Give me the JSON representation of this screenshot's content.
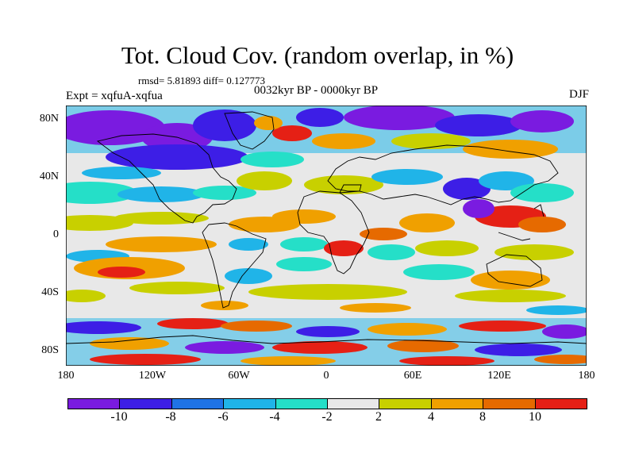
{
  "title": "Tot. Cloud Cov. (random overlap, in %)",
  "stats": "rmsd= 5.81893 diff= 0.127773",
  "experiment": "Expt = xqfuA-xqfua",
  "period": "0032kyr BP - 0000kyr BP",
  "season": "DJF",
  "lat_ticks": [
    "80N",
    "40N",
    "0",
    "40S",
    "80S"
  ],
  "lon_ticks": [
    "180",
    "120W",
    "60W",
    "0",
    "60E",
    "120E",
    "180"
  ],
  "colorbar": {
    "labels": [
      "-10",
      "-8",
      "-6",
      "-4",
      "-2",
      "2",
      "4",
      "8",
      "10"
    ],
    "colors": [
      "#7a1be0",
      "#3d1ee6",
      "#1f73e6",
      "#20b4e8",
      "#25dfc8",
      "#e8e8e8",
      "#c8d000",
      "#f0a000",
      "#e66a00",
      "#e52015"
    ]
  }
}
